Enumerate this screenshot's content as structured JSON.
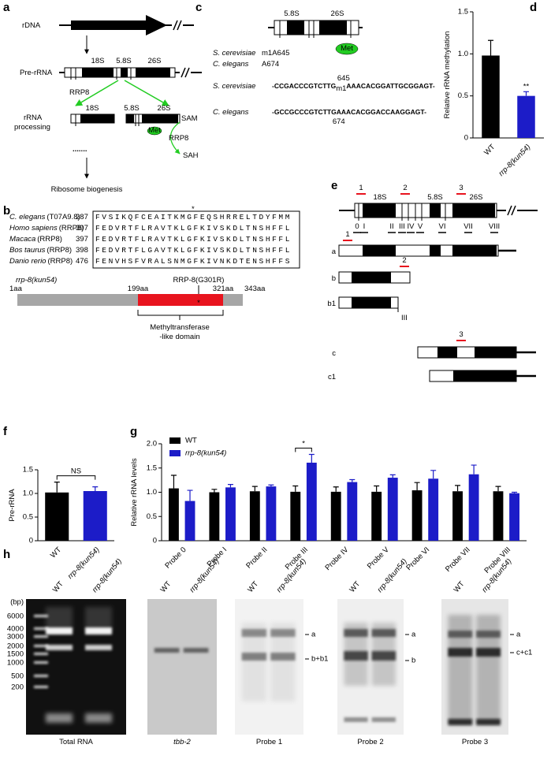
{
  "panel_labels": [
    "a",
    "b",
    "c",
    "d",
    "e",
    "f",
    "g",
    "h"
  ],
  "a": {
    "rdna": "rDNA",
    "pre_rrna": "Pre-rRNA",
    "pre_segments": [
      "18S",
      "5.8S",
      "26S"
    ],
    "enzyme": "RRP8",
    "processing": [
      "rRNA",
      "processing"
    ],
    "processed_segments": [
      "18S",
      "5.8S",
      "26S"
    ],
    "met": "Met",
    "enzyme_cycle": "RRP8",
    "sam": "SAM",
    "sah": "SAH",
    "dots": ".......",
    "outcome": "Ribosome biogenesis"
  },
  "b": {
    "star": "*",
    "alignment": [
      {
        "species": "C. elegans",
        "gene": "(T07A9.8)",
        "start": 287,
        "sequence": "FVSIKQFCEAITKMGFEQSHRRELTDYFMM"
      },
      {
        "species": "Homo sapiens",
        "gene": "(RRP8)",
        "start": 397,
        "sequence": "FEDVRTFLRAVTKLGFKIVSKDLTNSHFFL"
      },
      {
        "species": "Macaca",
        "gene": "(RRP8)",
        "start": 397,
        "sequence": "FEDVRTFLRAVTKLGFKIVSKDLTNSHFFL"
      },
      {
        "species": "Bos taurus",
        "gene": "(RRP8)",
        "start": 398,
        "sequence": "FEDVRTFLGAVTKLGFKIVSKDLTNSHFFL"
      },
      {
        "species": "Danio rerio",
        "gene": "(RRP8)",
        "start": 476,
        "sequence": "FENVHSFVRALSNMGFKIVNKDTENSHFFS"
      }
    ],
    "allele": "rrp-8(kun54)",
    "mutation": "RRP-8(G301R)",
    "positions": [
      "1aa",
      "199aa",
      "321aa",
      "343aa"
    ],
    "domain_star": "*",
    "domain": [
      "Methyltransferase",
      "-like domain"
    ]
  },
  "c": {
    "segments": [
      "5.8S",
      "26S"
    ],
    "met": "Met",
    "sites": [
      {
        "species": "S. cerevisiae",
        "site": "m1A645"
      },
      {
        "species": "C. elegans",
        "site": "A674"
      }
    ],
    "sequences": [
      {
        "species": "S. cerevisiae",
        "left": "-CCGACCCGTCTTG",
        "mark": "m1",
        "right": "AAACACGGATTGCGGAGT-",
        "position": 645
      },
      {
        "species": "C. elegans",
        "left": "-GCCGCCCGTCTTG",
        "mark": "A",
        "right": "AACACGGACCAAGGAGT-",
        "position": 674
      }
    ]
  },
  "e": {
    "markers": [
      "1",
      "2",
      "3"
    ],
    "segments": [
      "18S",
      "5.8S",
      "26S"
    ],
    "probes": [
      "0",
      "I",
      "II",
      "III",
      "IV",
      "V",
      "VI",
      "VII",
      "VIII"
    ],
    "fragments": [
      "a",
      "b",
      "b1",
      "c",
      "c1"
    ],
    "fragment_markers": [
      "1",
      "2",
      "3"
    ],
    "fragment_probe": "III"
  },
  "h": {
    "unit": "(bp)",
    "ladder": [
      6000,
      4000,
      3000,
      2000,
      1500,
      1000,
      500,
      200
    ],
    "gels": [
      {
        "caption": "Total RNA",
        "lanes": [
          "WT",
          "rrp-8(kun54)"
        ],
        "bands": []
      },
      {
        "caption": "tbb-2",
        "lanes": [
          "WT",
          "rrp-8(kun54)"
        ],
        "bands": []
      },
      {
        "caption": "Probe 1",
        "lanes": [
          "WT",
          "rrp-8(kun54)"
        ],
        "bands": [
          "a",
          "b+b1"
        ]
      },
      {
        "caption": "Probe 2",
        "lanes": [
          "WT",
          "rrp-8(kun54)"
        ],
        "bands": [
          "a",
          "b"
        ]
      },
      {
        "caption": "Probe 3",
        "lanes": [
          "WT",
          "rrp-8(kun54)"
        ],
        "bands": [
          "a",
          "c+c1"
        ]
      }
    ]
  },
  "chart_data": [
    {
      "type": "bar",
      "ylabel": "Relative rRNA methylation",
      "categories": [
        "WT",
        "rrp-8(kun54)"
      ],
      "values": [
        0.98,
        0.5
      ],
      "errors": [
        0.18,
        0.05
      ],
      "colors": [
        "#000000",
        "#1c1cc8"
      ],
      "ylim": [
        0,
        1.5
      ],
      "yticks": [
        0,
        0.5,
        {
          "value": 1,
          "label": "1.0"
        },
        1.5
      ],
      "annotation": "**"
    },
    {
      "type": "bar",
      "ylabel": "Pre-rRNA",
      "categories": [
        "WT",
        "rrp-8(kun54)"
      ],
      "values": [
        1.02,
        1.05
      ],
      "errors": [
        0.22,
        0.09
      ],
      "colors": [
        "#000000",
        "#1c1cc8"
      ],
      "ylim": [
        0,
        1.5
      ],
      "yticks": [
        0,
        0.5,
        {
          "value": 1,
          "label": "1.0"
        },
        1.5
      ],
      "annotation": "NS"
    },
    {
      "type": "bar",
      "ylabel": "Relative rRNA levels",
      "categories": [
        "Probe 0",
        "Probe I",
        "Probe II",
        "Probe III",
        "Probe IV",
        "Probe V",
        "Probe VI",
        "Probe VII",
        "Probe VIII"
      ],
      "series": [
        {
          "name": "WT",
          "color": "#000000",
          "values": [
            1.08,
            1.0,
            1.02,
            1.01,
            1.01,
            1.01,
            1.04,
            1.02,
            1.02
          ],
          "errors": [
            0.27,
            0.06,
            0.1,
            0.12,
            0.1,
            0.12,
            0.16,
            0.12,
            0.1
          ]
        },
        {
          "name": "rrp-8(kun54)",
          "color": "#1c1cc8",
          "values": [
            0.82,
            1.1,
            1.12,
            1.61,
            1.21,
            1.3,
            1.28,
            1.37,
            0.98
          ],
          "errors": [
            0.22,
            0.06,
            0.03,
            0.17,
            0.05,
            0.06,
            0.17,
            0.19,
            0.02
          ]
        }
      ],
      "ylim": [
        0,
        2
      ],
      "yticks": [
        0,
        0.5,
        {
          "value": 1,
          "label": "1.0"
        },
        1.5,
        {
          "value": 2,
          "label": "2.0"
        }
      ],
      "legend": "top-left",
      "annotation": "*"
    }
  ]
}
